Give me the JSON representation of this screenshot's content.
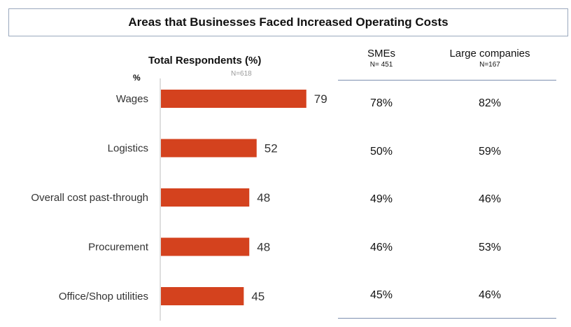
{
  "title": "Areas that Businesses Faced Increased Operating Costs",
  "chart_data": {
    "type": "bar",
    "orientation": "horizontal",
    "title": "Total Respondents (%)",
    "subtitle": "N=618",
    "ylabel": "%",
    "categories": [
      "Wages",
      "Logistics",
      "Overall cost past-through",
      "Procurement",
      "Office/Shop utilities"
    ],
    "values": [
      79,
      52,
      48,
      48,
      45
    ],
    "xlim": [
      0,
      100
    ],
    "bar_color": "#d4421e",
    "grid": false
  },
  "table": {
    "columns": [
      {
        "name": "SMEs",
        "n": "N= 451"
      },
      {
        "name": "Large companies",
        "n": "N=167"
      }
    ],
    "rows": [
      [
        "78%",
        "82%"
      ],
      [
        "50%",
        "59%"
      ],
      [
        "49%",
        "46%"
      ],
      [
        "46%",
        "53%"
      ],
      [
        "45%",
        "46%"
      ]
    ]
  }
}
